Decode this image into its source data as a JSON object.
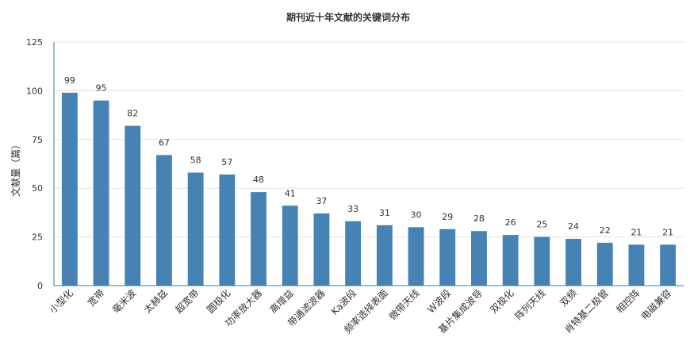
{
  "chart_data": {
    "type": "bar",
    "title": "期刊近十年文献的关键词分布",
    "xlabel": "",
    "ylabel": "文献量（篇）",
    "ylim": [
      0,
      125
    ],
    "yticks": [
      0,
      25,
      50,
      75,
      100,
      125
    ],
    "grid": true,
    "legend": "none",
    "bar_color": "#4682b4",
    "categories": [
      "小型化",
      "宽带",
      "毫米波",
      "太赫兹",
      "超宽带",
      "圆极化",
      "功率放大器",
      "高增益",
      "带通滤波器",
      "Ka波段",
      "频率选择表面",
      "微带天线",
      "W波段",
      "基片集成波导",
      "双极化",
      "阵列天线",
      "双频",
      "肖特基二极管",
      "相控阵",
      "电磁兼容"
    ],
    "values": [
      99,
      95,
      82,
      67,
      58,
      57,
      48,
      41,
      37,
      33,
      31,
      30,
      29,
      28,
      26,
      25,
      24,
      22,
      21,
      21
    ]
  }
}
